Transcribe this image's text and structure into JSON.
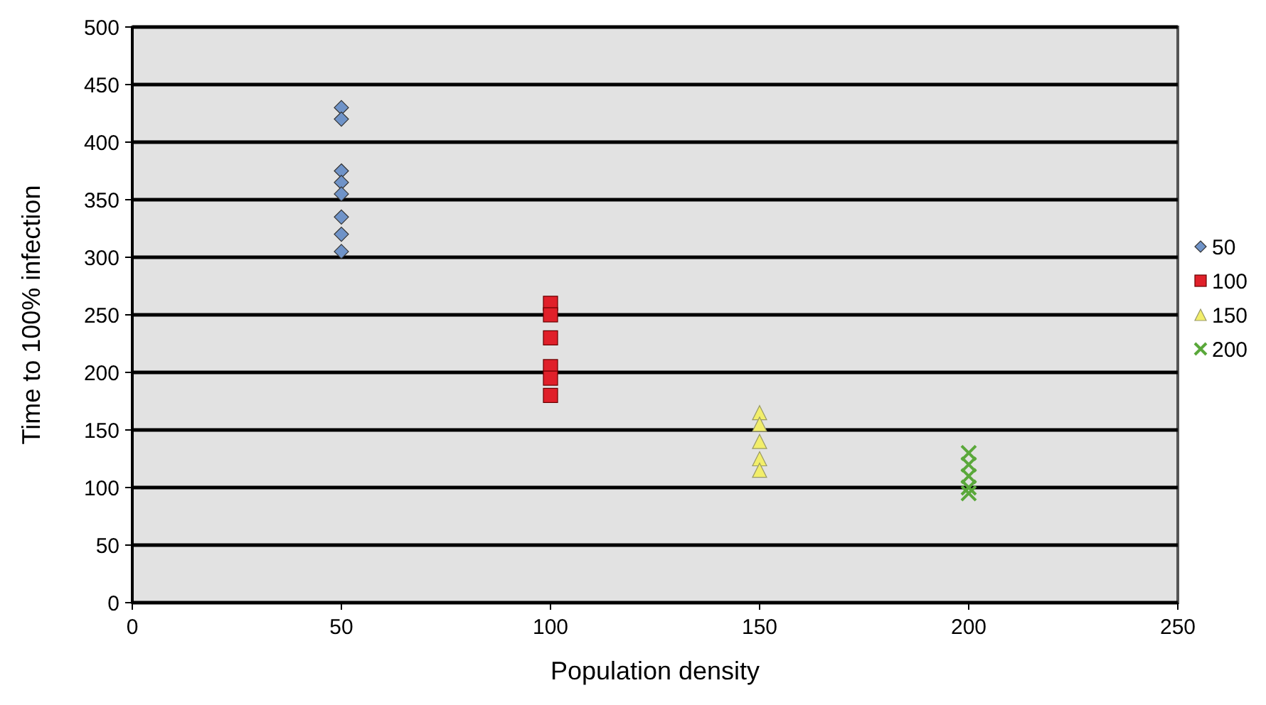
{
  "chart_data": {
    "type": "scatter",
    "xlabel": "Population density",
    "ylabel": "Time to 100% infection",
    "xlim": [
      0,
      250
    ],
    "xticks": [
      0,
      50,
      100,
      150,
      200,
      250
    ],
    "ylim": [
      0,
      500
    ],
    "yticks": [
      0,
      50,
      100,
      150,
      200,
      250,
      300,
      350,
      400,
      450,
      500
    ],
    "grid": "y",
    "legend": "right",
    "series": [
      {
        "name": "50",
        "color": "#6f93c8",
        "marker": "diamond",
        "x": [
          50,
          50,
          50,
          50,
          50,
          50,
          50,
          50
        ],
        "values": [
          430,
          420,
          375,
          365,
          355,
          335,
          320,
          305
        ]
      },
      {
        "name": "100",
        "color": "#e0202a",
        "marker": "square",
        "x": [
          100,
          100,
          100,
          100,
          100,
          100
        ],
        "values": [
          260,
          250,
          230,
          205,
          195,
          180
        ]
      },
      {
        "name": "150",
        "color": "#f2ee6a",
        "marker": "triangle",
        "x": [
          150,
          150,
          150,
          150,
          150
        ],
        "values": [
          165,
          155,
          140,
          125,
          115
        ]
      },
      {
        "name": "200",
        "color": "#5aa83a",
        "marker": "cross",
        "x": [
          200,
          200,
          200,
          200,
          200
        ],
        "values": [
          130,
          120,
          110,
          100,
          95
        ]
      }
    ]
  }
}
